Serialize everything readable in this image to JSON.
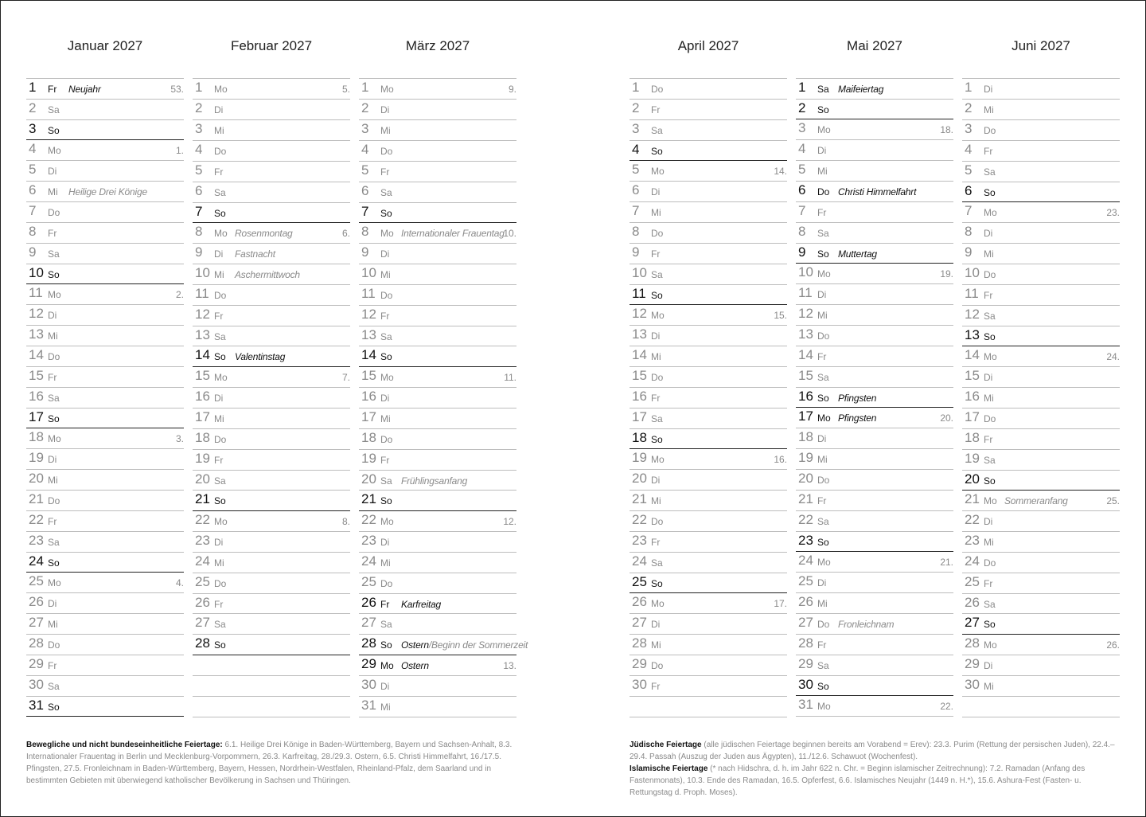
{
  "months": [
    {
      "title": "Januar 2027",
      "days": [
        [
          1,
          "Fr",
          "Neujahr",
          "53.",
          1
        ],
        [
          2,
          "Sa",
          "",
          "",
          0
        ],
        [
          3,
          "So",
          "",
          "",
          1
        ],
        [
          4,
          "Mo",
          "",
          "1.",
          0
        ],
        [
          5,
          "Di",
          "",
          "",
          0
        ],
        [
          6,
          "Mi",
          "Heilige Drei Könige",
          "",
          0
        ],
        [
          7,
          "Do",
          "",
          "",
          0
        ],
        [
          8,
          "Fr",
          "",
          "",
          0
        ],
        [
          9,
          "Sa",
          "",
          "",
          0
        ],
        [
          10,
          "So",
          "",
          "",
          1
        ],
        [
          11,
          "Mo",
          "",
          "2.",
          0
        ],
        [
          12,
          "Di",
          "",
          "",
          0
        ],
        [
          13,
          "Mi",
          "",
          "",
          0
        ],
        [
          14,
          "Do",
          "",
          "",
          0
        ],
        [
          15,
          "Fr",
          "",
          "",
          0
        ],
        [
          16,
          "Sa",
          "",
          "",
          0
        ],
        [
          17,
          "So",
          "",
          "",
          1
        ],
        [
          18,
          "Mo",
          "",
          "3.",
          0
        ],
        [
          19,
          "Di",
          "",
          "",
          0
        ],
        [
          20,
          "Mi",
          "",
          "",
          0
        ],
        [
          21,
          "Do",
          "",
          "",
          0
        ],
        [
          22,
          "Fr",
          "",
          "",
          0
        ],
        [
          23,
          "Sa",
          "",
          "",
          0
        ],
        [
          24,
          "So",
          "",
          "",
          1
        ],
        [
          25,
          "Mo",
          "",
          "4.",
          0
        ],
        [
          26,
          "Di",
          "",
          "",
          0
        ],
        [
          27,
          "Mi",
          "",
          "",
          0
        ],
        [
          28,
          "Do",
          "",
          "",
          0
        ],
        [
          29,
          "Fr",
          "",
          "",
          0
        ],
        [
          30,
          "Sa",
          "",
          "",
          0
        ],
        [
          31,
          "So",
          "",
          "",
          1
        ]
      ]
    },
    {
      "title": "Februar 2027",
      "days": [
        [
          1,
          "Mo",
          "",
          "5.",
          0
        ],
        [
          2,
          "Di",
          "",
          "",
          0
        ],
        [
          3,
          "Mi",
          "",
          "",
          0
        ],
        [
          4,
          "Do",
          "",
          "",
          0
        ],
        [
          5,
          "Fr",
          "",
          "",
          0
        ],
        [
          6,
          "Sa",
          "",
          "",
          0
        ],
        [
          7,
          "So",
          "",
          "",
          1
        ],
        [
          8,
          "Mo",
          "Rosenmontag",
          "6.",
          0
        ],
        [
          9,
          "Di",
          "Fastnacht",
          "",
          0
        ],
        [
          10,
          "Mi",
          "Aschermittwoch",
          "",
          0
        ],
        [
          11,
          "Do",
          "",
          "",
          0
        ],
        [
          12,
          "Fr",
          "",
          "",
          0
        ],
        [
          13,
          "Sa",
          "",
          "",
          0
        ],
        [
          14,
          "So",
          "Valentinstag",
          "",
          1
        ],
        [
          15,
          "Mo",
          "",
          "7.",
          0
        ],
        [
          16,
          "Di",
          "",
          "",
          0
        ],
        [
          17,
          "Mi",
          "",
          "",
          0
        ],
        [
          18,
          "Do",
          "",
          "",
          0
        ],
        [
          19,
          "Fr",
          "",
          "",
          0
        ],
        [
          20,
          "Sa",
          "",
          "",
          0
        ],
        [
          21,
          "So",
          "",
          "",
          1
        ],
        [
          22,
          "Mo",
          "",
          "8.",
          0
        ],
        [
          23,
          "Di",
          "",
          "",
          0
        ],
        [
          24,
          "Mi",
          "",
          "",
          0
        ],
        [
          25,
          "Do",
          "",
          "",
          0
        ],
        [
          26,
          "Fr",
          "",
          "",
          0
        ],
        [
          27,
          "Sa",
          "",
          "",
          0
        ],
        [
          28,
          "So",
          "",
          "",
          1
        ]
      ]
    },
    {
      "title": "März 2027",
      "days": [
        [
          1,
          "Mo",
          "",
          "9.",
          0
        ],
        [
          2,
          "Di",
          "",
          "",
          0
        ],
        [
          3,
          "Mi",
          "",
          "",
          0
        ],
        [
          4,
          "Do",
          "",
          "",
          0
        ],
        [
          5,
          "Fr",
          "",
          "",
          0
        ],
        [
          6,
          "Sa",
          "",
          "",
          0
        ],
        [
          7,
          "So",
          "",
          "",
          1
        ],
        [
          8,
          "Mo",
          "Internationaler Frauentag",
          "10.",
          0
        ],
        [
          9,
          "Di",
          "",
          "",
          0
        ],
        [
          10,
          "Mi",
          "",
          "",
          0
        ],
        [
          11,
          "Do",
          "",
          "",
          0
        ],
        [
          12,
          "Fr",
          "",
          "",
          0
        ],
        [
          13,
          "Sa",
          "",
          "",
          0
        ],
        [
          14,
          "So",
          "",
          "",
          1
        ],
        [
          15,
          "Mo",
          "",
          "11.",
          0
        ],
        [
          16,
          "Di",
          "",
          "",
          0
        ],
        [
          17,
          "Mi",
          "",
          "",
          0
        ],
        [
          18,
          "Do",
          "",
          "",
          0
        ],
        [
          19,
          "Fr",
          "",
          "",
          0
        ],
        [
          20,
          "Sa",
          "Frühlingsanfang",
          "",
          0
        ],
        [
          21,
          "So",
          "",
          "",
          1
        ],
        [
          22,
          "Mo",
          "",
          "12.",
          0
        ],
        [
          23,
          "Di",
          "",
          "",
          0
        ],
        [
          24,
          "Mi",
          "",
          "",
          0
        ],
        [
          25,
          "Do",
          "",
          "",
          0
        ],
        [
          26,
          "Fr",
          "Karfreitag",
          "",
          1
        ],
        [
          27,
          "Sa",
          "",
          "",
          0
        ],
        [
          28,
          "So",
          "Ostern",
          "",
          1,
          "/Beginn der Sommerzeit"
        ],
        [
          29,
          "Mo",
          "Ostern",
          "13.",
          1
        ],
        [
          30,
          "Di",
          "",
          "",
          0
        ],
        [
          31,
          "Mi",
          "",
          "",
          0
        ]
      ]
    },
    {
      "title": "April 2027",
      "days": [
        [
          1,
          "Do",
          "",
          "",
          0
        ],
        [
          2,
          "Fr",
          "",
          "",
          0
        ],
        [
          3,
          "Sa",
          "",
          "",
          0
        ],
        [
          4,
          "So",
          "",
          "",
          1
        ],
        [
          5,
          "Mo",
          "",
          "14.",
          0
        ],
        [
          6,
          "Di",
          "",
          "",
          0
        ],
        [
          7,
          "Mi",
          "",
          "",
          0
        ],
        [
          8,
          "Do",
          "",
          "",
          0
        ],
        [
          9,
          "Fr",
          "",
          "",
          0
        ],
        [
          10,
          "Sa",
          "",
          "",
          0
        ],
        [
          11,
          "So",
          "",
          "",
          1
        ],
        [
          12,
          "Mo",
          "",
          "15.",
          0
        ],
        [
          13,
          "Di",
          "",
          "",
          0
        ],
        [
          14,
          "Mi",
          "",
          "",
          0
        ],
        [
          15,
          "Do",
          "",
          "",
          0
        ],
        [
          16,
          "Fr",
          "",
          "",
          0
        ],
        [
          17,
          "Sa",
          "",
          "",
          0
        ],
        [
          18,
          "So",
          "",
          "",
          1
        ],
        [
          19,
          "Mo",
          "",
          "16.",
          0
        ],
        [
          20,
          "Di",
          "",
          "",
          0
        ],
        [
          21,
          "Mi",
          "",
          "",
          0
        ],
        [
          22,
          "Do",
          "",
          "",
          0
        ],
        [
          23,
          "Fr",
          "",
          "",
          0
        ],
        [
          24,
          "Sa",
          "",
          "",
          0
        ],
        [
          25,
          "So",
          "",
          "",
          1
        ],
        [
          26,
          "Mo",
          "",
          "17.",
          0
        ],
        [
          27,
          "Di",
          "",
          "",
          0
        ],
        [
          28,
          "Mi",
          "",
          "",
          0
        ],
        [
          29,
          "Do",
          "",
          "",
          0
        ],
        [
          30,
          "Fr",
          "",
          "",
          0
        ]
      ]
    },
    {
      "title": "Mai 2027",
      "days": [
        [
          1,
          "Sa",
          "Maifeiertag",
          "",
          1
        ],
        [
          2,
          "So",
          "",
          "",
          1
        ],
        [
          3,
          "Mo",
          "",
          "18.",
          0
        ],
        [
          4,
          "Di",
          "",
          "",
          0
        ],
        [
          5,
          "Mi",
          "",
          "",
          0
        ],
        [
          6,
          "Do",
          "Christi Himmelfahrt",
          "",
          1
        ],
        [
          7,
          "Fr",
          "",
          "",
          0
        ],
        [
          8,
          "Sa",
          "",
          "",
          0
        ],
        [
          9,
          "So",
          "Muttertag",
          "",
          1
        ],
        [
          10,
          "Mo",
          "",
          "19.",
          0
        ],
        [
          11,
          "Di",
          "",
          "",
          0
        ],
        [
          12,
          "Mi",
          "",
          "",
          0
        ],
        [
          13,
          "Do",
          "",
          "",
          0
        ],
        [
          14,
          "Fr",
          "",
          "",
          0
        ],
        [
          15,
          "Sa",
          "",
          "",
          0
        ],
        [
          16,
          "So",
          "Pfingsten",
          "",
          1
        ],
        [
          17,
          "Mo",
          "Pfingsten",
          "20.",
          1
        ],
        [
          18,
          "Di",
          "",
          "",
          0
        ],
        [
          19,
          "Mi",
          "",
          "",
          0
        ],
        [
          20,
          "Do",
          "",
          "",
          0
        ],
        [
          21,
          "Fr",
          "",
          "",
          0
        ],
        [
          22,
          "Sa",
          "",
          "",
          0
        ],
        [
          23,
          "So",
          "",
          "",
          1
        ],
        [
          24,
          "Mo",
          "",
          "21.",
          0
        ],
        [
          25,
          "Di",
          "",
          "",
          0
        ],
        [
          26,
          "Mi",
          "",
          "",
          0
        ],
        [
          27,
          "Do",
          "Fronleichnam",
          "",
          0
        ],
        [
          28,
          "Fr",
          "",
          "",
          0
        ],
        [
          29,
          "Sa",
          "",
          "",
          0
        ],
        [
          30,
          "So",
          "",
          "",
          1
        ],
        [
          31,
          "Mo",
          "",
          "22.",
          0
        ]
      ]
    },
    {
      "title": "Juni 2027",
      "days": [
        [
          1,
          "Di",
          "",
          "",
          0
        ],
        [
          2,
          "Mi",
          "",
          "",
          0
        ],
        [
          3,
          "Do",
          "",
          "",
          0
        ],
        [
          4,
          "Fr",
          "",
          "",
          0
        ],
        [
          5,
          "Sa",
          "",
          "",
          0
        ],
        [
          6,
          "So",
          "",
          "",
          1
        ],
        [
          7,
          "Mo",
          "",
          "23.",
          0
        ],
        [
          8,
          "Di",
          "",
          "",
          0
        ],
        [
          9,
          "Mi",
          "",
          "",
          0
        ],
        [
          10,
          "Do",
          "",
          "",
          0
        ],
        [
          11,
          "Fr",
          "",
          "",
          0
        ],
        [
          12,
          "Sa",
          "",
          "",
          0
        ],
        [
          13,
          "So",
          "",
          "",
          1
        ],
        [
          14,
          "Mo",
          "",
          "24.",
          0
        ],
        [
          15,
          "Di",
          "",
          "",
          0
        ],
        [
          16,
          "Mi",
          "",
          "",
          0
        ],
        [
          17,
          "Do",
          "",
          "",
          0
        ],
        [
          18,
          "Fr",
          "",
          "",
          0
        ],
        [
          19,
          "Sa",
          "",
          "",
          0
        ],
        [
          20,
          "So",
          "",
          "",
          1
        ],
        [
          21,
          "Mo",
          "Sommeranfang",
          "25.",
          0
        ],
        [
          22,
          "Di",
          "",
          "",
          0
        ],
        [
          23,
          "Mi",
          "",
          "",
          0
        ],
        [
          24,
          "Do",
          "",
          "",
          0
        ],
        [
          25,
          "Fr",
          "",
          "",
          0
        ],
        [
          26,
          "Sa",
          "",
          "",
          0
        ],
        [
          27,
          "So",
          "",
          "",
          1
        ],
        [
          28,
          "Mo",
          "",
          "26.",
          0
        ],
        [
          29,
          "Di",
          "",
          "",
          0
        ],
        [
          30,
          "Mi",
          "",
          "",
          0
        ]
      ]
    }
  ],
  "footnotes": {
    "left_heading": "Bewegliche und nicht bundeseinheitliche Feiertage:",
    "left_text": " 6.1. Heilige Drei Könige in Baden-Württemberg, Bayern und Sachsen-Anhalt, 8.3. Internationaler Frauentag in Berlin und Mecklenburg-Vorpommern, 26.3. Karfreitag, 28./29.3. Ostern, 6.5. Christi Himmelfahrt, 16./17.5. Pfingsten, 27.5. Fronleichnam in Baden-Württemberg, Bayern, Hessen, Nordrhein-Westfalen, Rheinland-Pfalz, dem Saarland und in bestimmten Gebieten mit überwiegend katholischer Bevölkerung in Sachsen und Thüringen.",
    "jewish_heading": "Jüdische Feiertage",
    "jewish_text": " (alle jüdischen Feiertage beginnen bereits am Vorabend = Erev): 23.3. Purim (Rettung der persischen Juden), 22.4.–29.4. Passah (Auszug der Juden aus Ägypten), 11./12.6. Schawuot (Wochenfest).",
    "islamic_heading": "Islamische Feiertage",
    "islamic_text": " (* nach Hidschra, d. h. im Jahr 622 n. Chr. = Beginn islamischer Zeitrechnung): 7.2. Ramadan (Anfang des Fastenmonats), 10.3. Ende des Ramadan, 16.5. Opferfest, 6.6. Islamisches Neujahr (1449 n. H.*), 15.6. Ashura-Fest (Fasten- u. Rettungstag d. Proph. Moses)."
  }
}
